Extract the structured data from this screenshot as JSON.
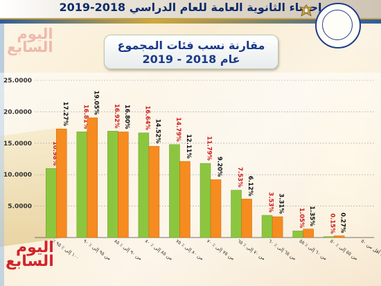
{
  "header": {
    "title": "إحصاء الثانوية العامة للعام الدراسي 2018-2019"
  },
  "watermark": {
    "line1": "اليوم",
    "line2": "السابع"
  },
  "chart_data": {
    "type": "bar",
    "title": "مقارنة نسب فئات المجموع",
    "subtitle": "عام 2018 - 2019",
    "xlabel": "",
    "ylabel": "",
    "ylim": [
      0,
      25
    ],
    "y_ticks": [
      "",
      "5.0000",
      "10.0000",
      "15.0000",
      "20.0000",
      "25.0000"
    ],
    "grid": true,
    "categories": [
      "٪ ١٠٠ إلى ٪ ٩٥",
      "من ٩٥ إلى ٪ ٩٠",
      "من ٩٠ إلى ٪ ٨٥",
      "من ٨٥ إلى ٪ ٨٠",
      "من ٨٠ إلى ٪ ٧٥",
      "من ٧٥ إلى ٪ ٧٠",
      "من ٧٠ إلى ٪ ٦٥",
      "من ٦٥ إلى ٪ ٦٠",
      "من ٦٠ إلى ٪ ٥٥",
      "من ٥٥ إلى ٪ ٥٠",
      "أقل من ٥٠ ٪"
    ],
    "series": [
      {
        "color": "#8cc63f",
        "label_color": "#cc1e1e",
        "values": [
          10.98,
          16.81,
          16.92,
          16.64,
          14.79,
          11.79,
          7.53,
          3.53,
          1.05,
          0.15,
          0.0
        ],
        "labels": [
          "10.98%",
          "16.81%",
          "16.92%",
          "16.64%",
          "14.79%",
          "11.79%",
          "7.53%",
          "3.53%",
          "1.05%",
          "0.15%",
          ""
        ]
      },
      {
        "color": "#f68b1f",
        "label_color": "#111111",
        "values": [
          17.27,
          19.05,
          16.8,
          14.52,
          12.11,
          9.2,
          6.12,
          3.31,
          1.35,
          0.27,
          0.0
        ],
        "labels": [
          "17.27%",
          "19.05%",
          "16.80%",
          "14.52%",
          "12.11%",
          "9.20%",
          "6.12%",
          "3.31%",
          "1.35%",
          "0.27%",
          ""
        ]
      }
    ]
  }
}
